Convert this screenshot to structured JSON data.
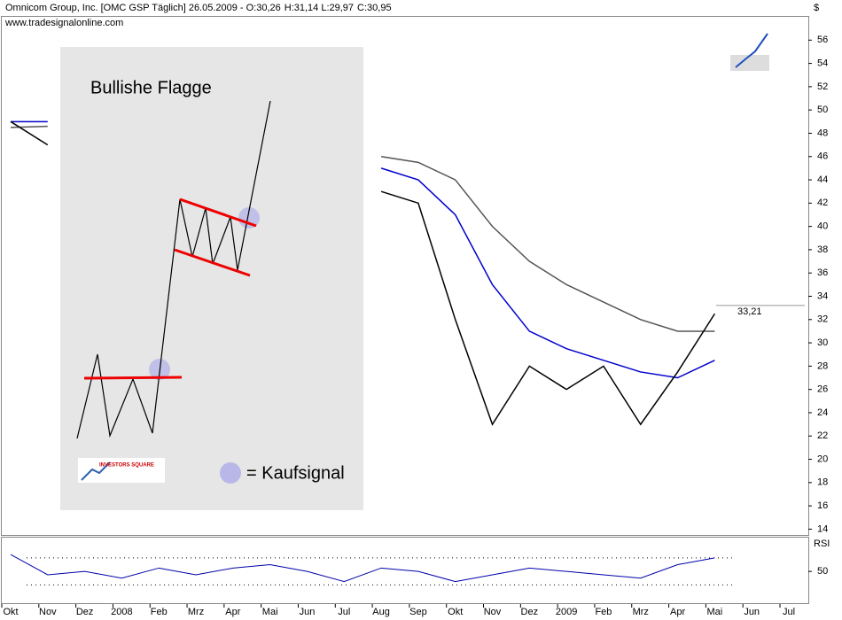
{
  "chart_data": [
    {
      "type": "line",
      "title": "Omnicom Group, Inc. [OMC GSP  Täglich] 26.05.2009 -",
      "quote": [
        {
          "text": "O:30,26",
          "color": "#e00000"
        },
        {
          "text": "H:31,14 L:29,97",
          "color": "#000000"
        },
        {
          "text": "C:30,95",
          "color": "#00a000"
        }
      ],
      "source": "www.tradesignalonline.com",
      "unit": "$",
      "categories": [
        "Okt",
        "Nov",
        "Dez",
        "2008",
        "Feb",
        "Mrz",
        "Apr",
        "Mai",
        "Jun",
        "Jul",
        "Aug",
        "Sep",
        "Okt",
        "Nov",
        "Dez",
        "2009",
        "Feb",
        "Mrz",
        "Apr",
        "Mai",
        "Jun",
        "Jul"
      ],
      "series": [
        {
          "color": "#555555",
          "values": [
            48.5,
            48.6,
            null,
            null,
            null,
            null,
            null,
            null,
            null,
            null,
            46,
            45.5,
            44,
            40,
            37,
            35,
            33.5,
            32,
            31,
            31,
            null,
            null
          ]
        },
        {
          "color": "#0000cc",
          "values": [
            49,
            49,
            null,
            null,
            null,
            null,
            null,
            null,
            null,
            null,
            45,
            44,
            41,
            35,
            31,
            29.5,
            28.5,
            27.5,
            27,
            28.5,
            null,
            null
          ]
        },
        {
          "color": "#000000",
          "values": [
            49,
            47,
            null,
            null,
            null,
            null,
            null,
            null,
            null,
            null,
            43,
            42,
            32,
            23,
            28,
            26,
            28,
            23,
            27.5,
            32.5,
            null,
            null
          ]
        }
      ],
      "annotations": [
        {
          "label": "33,21",
          "value": 33.21
        }
      ],
      "ylim": [
        13.5,
        58
      ],
      "yticks": [
        14,
        16,
        18,
        20,
        22,
        24,
        26,
        28,
        30,
        32,
        34,
        36,
        38,
        40,
        42,
        44,
        46,
        48,
        50,
        52,
        54,
        56
      ],
      "inset": {
        "title": "Bullishe Flagge",
        "legend": "= Kaufsignal",
        "logo": "INVESTORS SQUARE"
      }
    },
    {
      "type": "line",
      "title": "RSI",
      "series": [
        {
          "color": "#0000aa",
          "values": [
            75,
            45,
            50,
            40,
            55,
            45,
            55,
            60,
            50,
            35,
            55,
            50,
            35,
            45,
            55,
            50,
            45,
            40,
            60,
            70,
            null,
            null
          ]
        }
      ],
      "levels": [
        30,
        70
      ],
      "ylim": [
        3,
        100
      ],
      "yticks": [
        50
      ]
    }
  ]
}
